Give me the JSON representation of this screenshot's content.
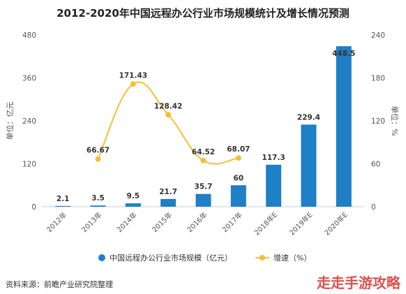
{
  "chart_data": {
    "type": "bar",
    "title": "2012-2020年中国远程办公行业市场规模统计及增长情况预测",
    "categories": [
      "2012年",
      "2013年",
      "2014年",
      "2015年",
      "2016年",
      "2017年",
      "2018年E",
      "2019年E",
      "2020年E"
    ],
    "series": [
      {
        "name": "中国远程办公行业市场规模（亿元）",
        "type": "bar",
        "axis": "left",
        "color": "#1f7fc7",
        "values": [
          2.1,
          3.5,
          9.5,
          21.7,
          35.7,
          60,
          117.3,
          229.4,
          448.5
        ],
        "labels": [
          "2.1",
          "3.5",
          "9.5",
          "21.7",
          "35.7",
          "60",
          "117.3",
          "229.4",
          "448.5"
        ]
      },
      {
        "name": "增速（%）",
        "type": "line",
        "axis": "right",
        "color": "#f3c035",
        "values": [
          null,
          66.67,
          171.43,
          128.42,
          64.52,
          68.07,
          null,
          null,
          null
        ],
        "labels": [
          "",
          "66.67",
          "171.43",
          "128.42",
          "64.52",
          "68.07",
          "",
          "",
          ""
        ]
      }
    ],
    "left_axis": {
      "label": "单位：亿元",
      "ylim": [
        0,
        480
      ],
      "ticks": [
        "0",
        "120",
        "240",
        "360",
        "480"
      ]
    },
    "right_axis": {
      "label": "单位：%",
      "ylim": [
        0,
        240
      ],
      "ticks": [
        "0",
        "60",
        "120",
        "180",
        "240"
      ]
    },
    "legend_position": "bottom",
    "grid": false
  },
  "source": "资料来源：前瞻产业研究院整理",
  "watermark": "走走手游攻略"
}
